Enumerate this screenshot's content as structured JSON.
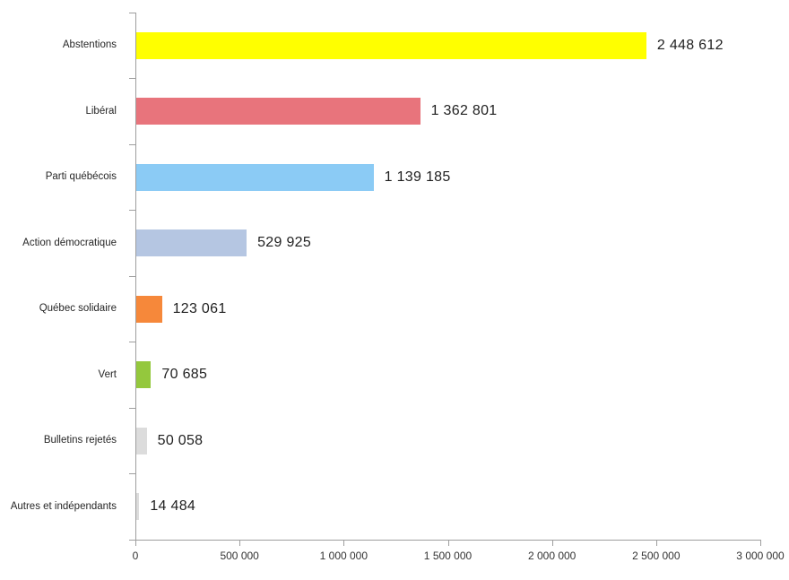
{
  "chart_data": {
    "type": "bar",
    "orientation": "horizontal",
    "title": "",
    "xlabel": "",
    "ylabel": "",
    "grid": false,
    "legend": false,
    "xlim": [
      0,
      3000000
    ],
    "categories": [
      "Abstentions",
      "Libéral",
      "Parti québécois",
      "Action démocratique",
      "Québec solidaire",
      "Vert",
      "Bulletins rejetés",
      "Autres et indépendants"
    ],
    "values": [
      2448612,
      1362801,
      1139185,
      529925,
      123061,
      70685,
      50058,
      14484
    ],
    "value_labels": [
      "2 448 612",
      "1 362 801",
      "1 139 185",
      "529 925",
      "123 061",
      "70 685",
      "50 058",
      "14 484"
    ],
    "bar_colors": [
      "#FFFF00",
      "#E8747C",
      "#8BCBF5",
      "#B5C6E2",
      "#F6883A",
      "#94C83D",
      "#DCDCDC",
      "#DCDCDC"
    ],
    "x_ticks": [
      "0",
      "500 000",
      "1 000 000",
      "1 500 000",
      "2 000 000",
      "2 500 000",
      "3 000 000"
    ],
    "x_tick_values": [
      0,
      500000,
      1000000,
      1500000,
      2000000,
      2500000,
      3000000
    ],
    "axis_color": "#9e9e9e",
    "value_label_color": "#1f1f1f",
    "category_label_color": "#262626",
    "tick_label_color": "#333333"
  }
}
